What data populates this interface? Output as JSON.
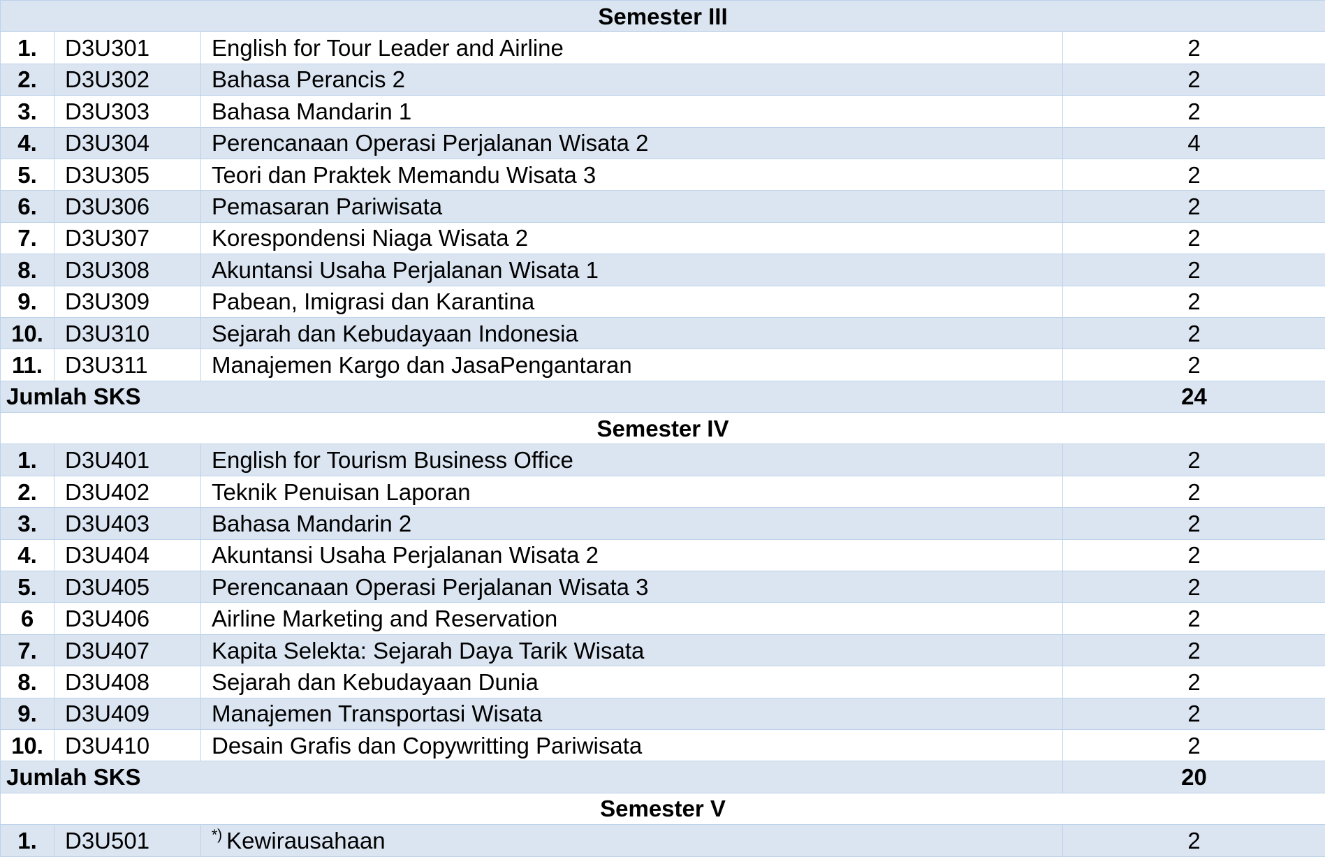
{
  "semesters": [
    {
      "title": "Semester III",
      "rows": [
        {
          "no": "1.",
          "code": "D3U301",
          "name": "English for Tour Leader and Airline",
          "sks": "2"
        },
        {
          "no": "2.",
          "code": "D3U302",
          "name": "Bahasa Perancis 2",
          "sks": "2"
        },
        {
          "no": "3.",
          "code": "D3U303",
          "name": "Bahasa Mandarin 1",
          "sks": "2"
        },
        {
          "no": "4.",
          "code": "D3U304",
          "name": "Perencanaan Operasi Perjalanan Wisata 2",
          "sks": "4"
        },
        {
          "no": "5.",
          "code": "D3U305",
          "name": "Teori dan Praktek Memandu Wisata 3",
          "sks": "2"
        },
        {
          "no": "6.",
          "code": "D3U306",
          "name": "Pemasaran Pariwisata",
          "sks": "2"
        },
        {
          "no": "7.",
          "code": "D3U307",
          "name": "Korespondensi Niaga Wisata 2",
          "sks": "2"
        },
        {
          "no": "8.",
          "code": "D3U308",
          "name": "Akuntansi Usaha Perjalanan Wisata 1",
          "sks": "2"
        },
        {
          "no": "9.",
          "code": "D3U309",
          "name": "Pabean, Imigrasi dan Karantina",
          "sks": "2"
        },
        {
          "no": "10.",
          "code": "D3U310",
          "name": "Sejarah dan Kebudayaan Indonesia",
          "sks": "2"
        },
        {
          "no": "11.",
          "code": "D3U311",
          "name": "Manajemen Kargo dan JasaPengantaran",
          "sks": "2"
        }
      ],
      "total_label": "Jumlah SKS",
      "total_value": "24"
    },
    {
      "title": "Semester IV",
      "rows": [
        {
          "no": "1.",
          "code": "D3U401",
          "name": "English for Tourism Business Office",
          "sks": "2"
        },
        {
          "no": "2.",
          "code": "D3U402",
          "name": "Teknik Penuisan Laporan",
          "sks": "2"
        },
        {
          "no": "3.",
          "code": "D3U403",
          "name": "Bahasa Mandarin 2",
          "sks": "2"
        },
        {
          "no": "4.",
          "code": "D3U404",
          "name": "Akuntansi Usaha Perjalanan Wisata 2",
          "sks": "2"
        },
        {
          "no": "5.",
          "code": "D3U405",
          "name": "Perencanaan Operasi Perjalanan Wisata 3",
          "sks": "2"
        },
        {
          "no": "6",
          "code": "D3U406",
          "name": "Airline Marketing and Reservation",
          "sks": "2"
        },
        {
          "no": "7.",
          "code": "D3U407",
          "name": "Kapita Selekta: Sejarah Daya Tarik Wisata",
          "sks": "2"
        },
        {
          "no": "8.",
          "code": "D3U408",
          "name": "Sejarah dan Kebudayaan Dunia",
          "sks": "2"
        },
        {
          "no": "9.",
          "code": "D3U409",
          "name": "Manajemen Transportasi Wisata",
          "sks": "2"
        },
        {
          "no": "10.",
          "code": "D3U410",
          "name": "Desain Grafis dan Copywritting Pariwisata",
          "sks": "2"
        }
      ],
      "total_label": "Jumlah SKS",
      "total_value": "20"
    },
    {
      "title": "Semester V",
      "rows": [
        {
          "no": "1.",
          "code": "D3U501",
          "note": "*)",
          "name": "Kewirausahaan",
          "sks": "2"
        }
      ]
    }
  ],
  "colors": {
    "shade": "#dbe5f1",
    "plain": "#ffffff",
    "border": "#bdd2ea",
    "text": "#000000"
  }
}
